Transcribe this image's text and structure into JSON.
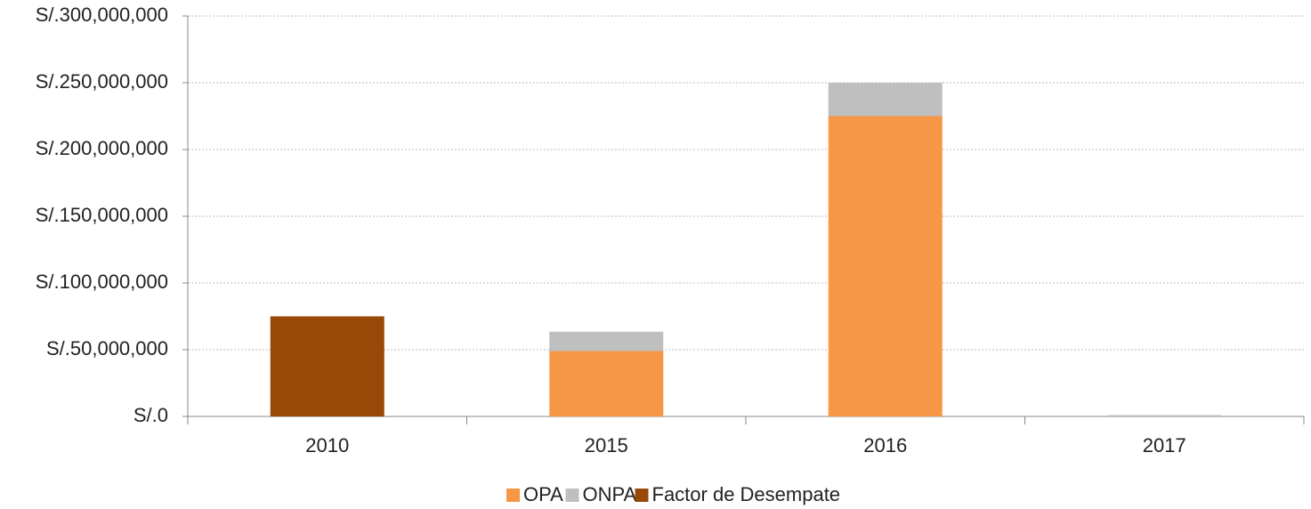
{
  "chart_data": {
    "type": "bar",
    "stacked": true,
    "categories": [
      "2010",
      "2015",
      "2016",
      "2017"
    ],
    "series": [
      {
        "name": "OPA",
        "color": "#f79646",
        "values": [
          0,
          49000000,
          225000000,
          0
        ]
      },
      {
        "name": "ONPA",
        "color": "#bfbfbf",
        "values": [
          0,
          14500000,
          25000000,
          1000000
        ]
      },
      {
        "name": "Factor de Desempate",
        "color": "#984807",
        "values": [
          75000000,
          0,
          0,
          0
        ]
      }
    ],
    "ylim": [
      0,
      300000000
    ],
    "yticks": [
      {
        "value": 0,
        "label": "S/.0"
      },
      {
        "value": 50000000,
        "label": "S/.50,000,000"
      },
      {
        "value": 100000000,
        "label": "S/.100,000,000"
      },
      {
        "value": 150000000,
        "label": "S/.150,000,000"
      },
      {
        "value": 200000000,
        "label": "S/.200,000,000"
      },
      {
        "value": 250000000,
        "label": "S/.250,000,000"
      },
      {
        "value": 300000000,
        "label": "S/.300,000,000"
      }
    ],
    "grid": true,
    "legend": "bottom"
  }
}
